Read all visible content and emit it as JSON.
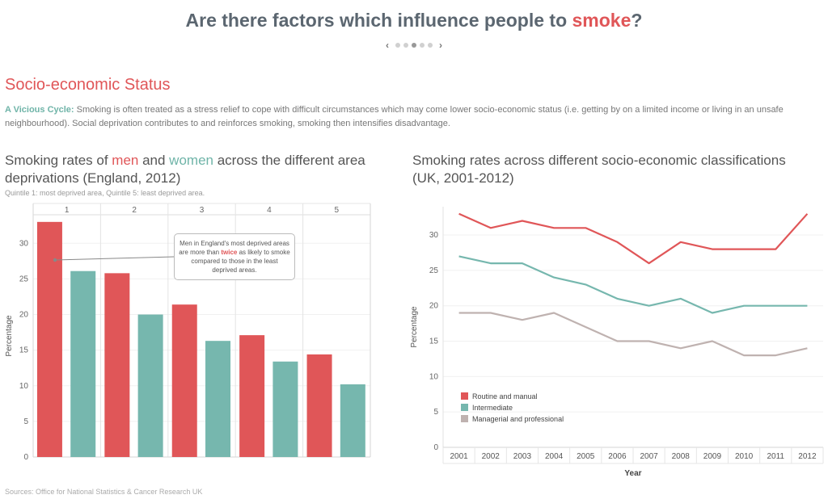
{
  "header": {
    "title_prefix": "Are there factors which influence people to ",
    "title_highlight": "smoke",
    "title_suffix": "?"
  },
  "pager": {
    "dots": 5,
    "active": 3
  },
  "section": {
    "title": "Socio-economic Status",
    "intro_lead": "A Vicious Cycle:",
    "intro_text": " Smoking is often treated as a stress relief to cope with difficult circumstances which may come lower socio-economic status (i.e. getting by on a limited income or living in an unsafe neighbourhood). Social deprivation contributes to and reinforces smoking, smoking then intensifies disadvantage."
  },
  "left_chart": {
    "title_1": "Smoking rates of ",
    "title_men": "men",
    "title_2": " and ",
    "title_women": "women",
    "title_3": " across the different area deprivations (England, 2012)",
    "subtitle": "Quintile 1: most deprived area, Quintile 5: least deprived area.",
    "callout_1": "Men in England's most deprived areas are more than ",
    "callout_highlight": "twice",
    "callout_2": " as likely to smoke compared to those in the least deprived areas."
  },
  "right_chart": {
    "title": "Smoking rates across different socio-economic classifications (UK, 2001-2012)"
  },
  "sources": "Sources: Office for National Statistics & Cancer Research UK",
  "colors": {
    "men": "#e05658",
    "women": "#76b7ae",
    "routine": "#e05658",
    "intermediate": "#76b7ae",
    "managerial": "#bfb2b0"
  },
  "chart_data": [
    {
      "type": "bar",
      "categories": [
        "1",
        "2",
        "3",
        "4",
        "5"
      ],
      "series": [
        {
          "values": [
            33,
            25.8,
            21.4,
            17.1,
            14.4
          ]
        },
        {
          "values": [
            26.1,
            20,
            16.3,
            13.4,
            10.2
          ]
        }
      ],
      "ylabel": "Percentage",
      "ylim": [
        0,
        34
      ],
      "yticks": [
        0,
        5,
        10,
        15,
        20,
        25,
        30
      ],
      "grid": true
    },
    {
      "type": "line",
      "x": [
        2001,
        2002,
        2003,
        2004,
        2005,
        2006,
        2007,
        2008,
        2009,
        2010,
        2011,
        2012
      ],
      "series": [
        {
          "name": "Routine and manual",
          "values": [
            33,
            31,
            32,
            31,
            31,
            29,
            26,
            29,
            28,
            28,
            28,
            33
          ]
        },
        {
          "name": "Intermediate",
          "values": [
            27,
            26,
            26,
            24,
            23,
            21,
            20,
            21,
            19,
            20,
            20,
            20
          ]
        },
        {
          "name": "Managerial and professional",
          "values": [
            19,
            19,
            18,
            19,
            17,
            15,
            15,
            14,
            15,
            13,
            13,
            14
          ]
        }
      ],
      "xlabel": "Year",
      "ylabel": "Percentage",
      "ylim": [
        0,
        34
      ],
      "yticks": [
        0,
        5,
        10,
        15,
        20,
        25,
        30
      ],
      "legend": "bottom-left",
      "grid": true
    }
  ]
}
